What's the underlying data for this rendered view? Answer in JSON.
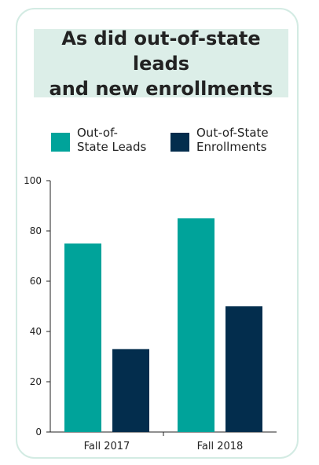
{
  "title": "As did out-of-state leads\nand new enrollments",
  "colors": {
    "leads": "#00a39a",
    "enrollments": "#032d4d",
    "title_bg": "#dceee8",
    "card_border": "#d3ebe3"
  },
  "chart_data": {
    "type": "bar",
    "title": "As did out-of-state leads and new enrollments",
    "xlabel": "",
    "ylabel": "",
    "categories": [
      "Fall 2017",
      "Fall 2018"
    ],
    "series": [
      {
        "name": "Out-of-\nState Leads",
        "values": [
          75,
          85
        ]
      },
      {
        "name": "Out-of-State\nEnrollments",
        "values": [
          33,
          50
        ]
      }
    ],
    "ylim": [
      0,
      100
    ],
    "yticks": [
      "0",
      "20",
      "40",
      "60",
      "80",
      "100"
    ],
    "grid": false,
    "legend_position": "top"
  }
}
